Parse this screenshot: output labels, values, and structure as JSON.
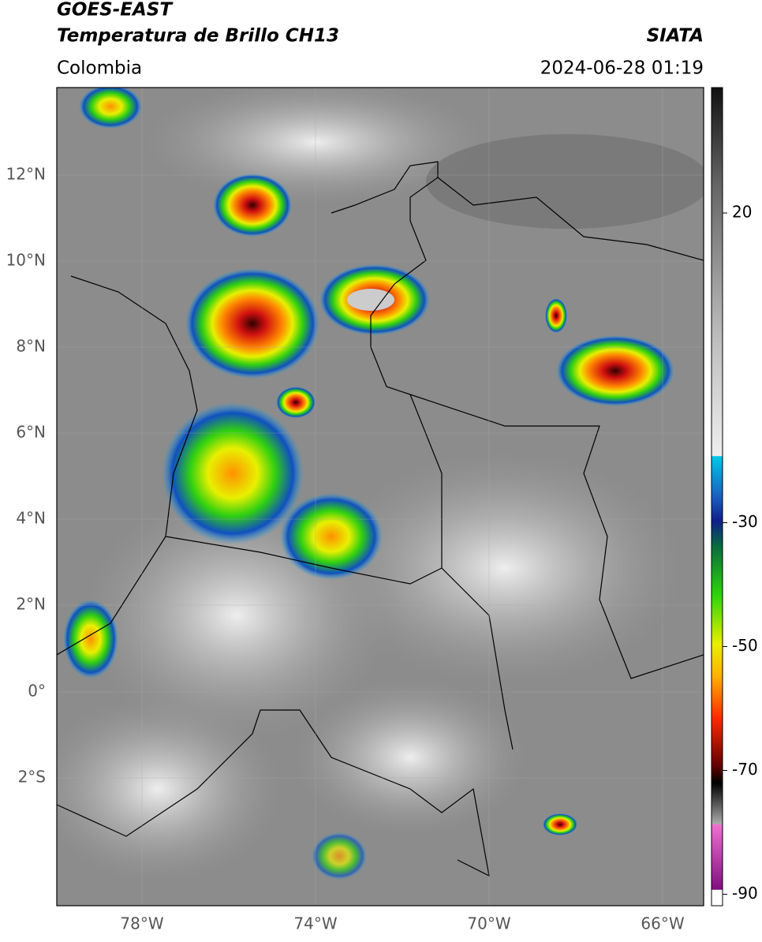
{
  "header": {
    "title": "GOES-EAST",
    "subtitle": "Temperatura de Brillo CH13",
    "region": "Colombia",
    "source": "SIATA",
    "datetime": "2024-06-28 01:19"
  },
  "map": {
    "lat_labels": [
      "12°N",
      "10°N",
      "8°N",
      "6°N",
      "4°N",
      "2°N",
      "0°",
      "2°S"
    ],
    "lon_labels": [
      "78°W",
      "74°W",
      "70°W",
      "66°W"
    ]
  },
  "colorbar": {
    "ticks": [
      20,
      -30,
      -50,
      -70,
      -90
    ]
  }
}
